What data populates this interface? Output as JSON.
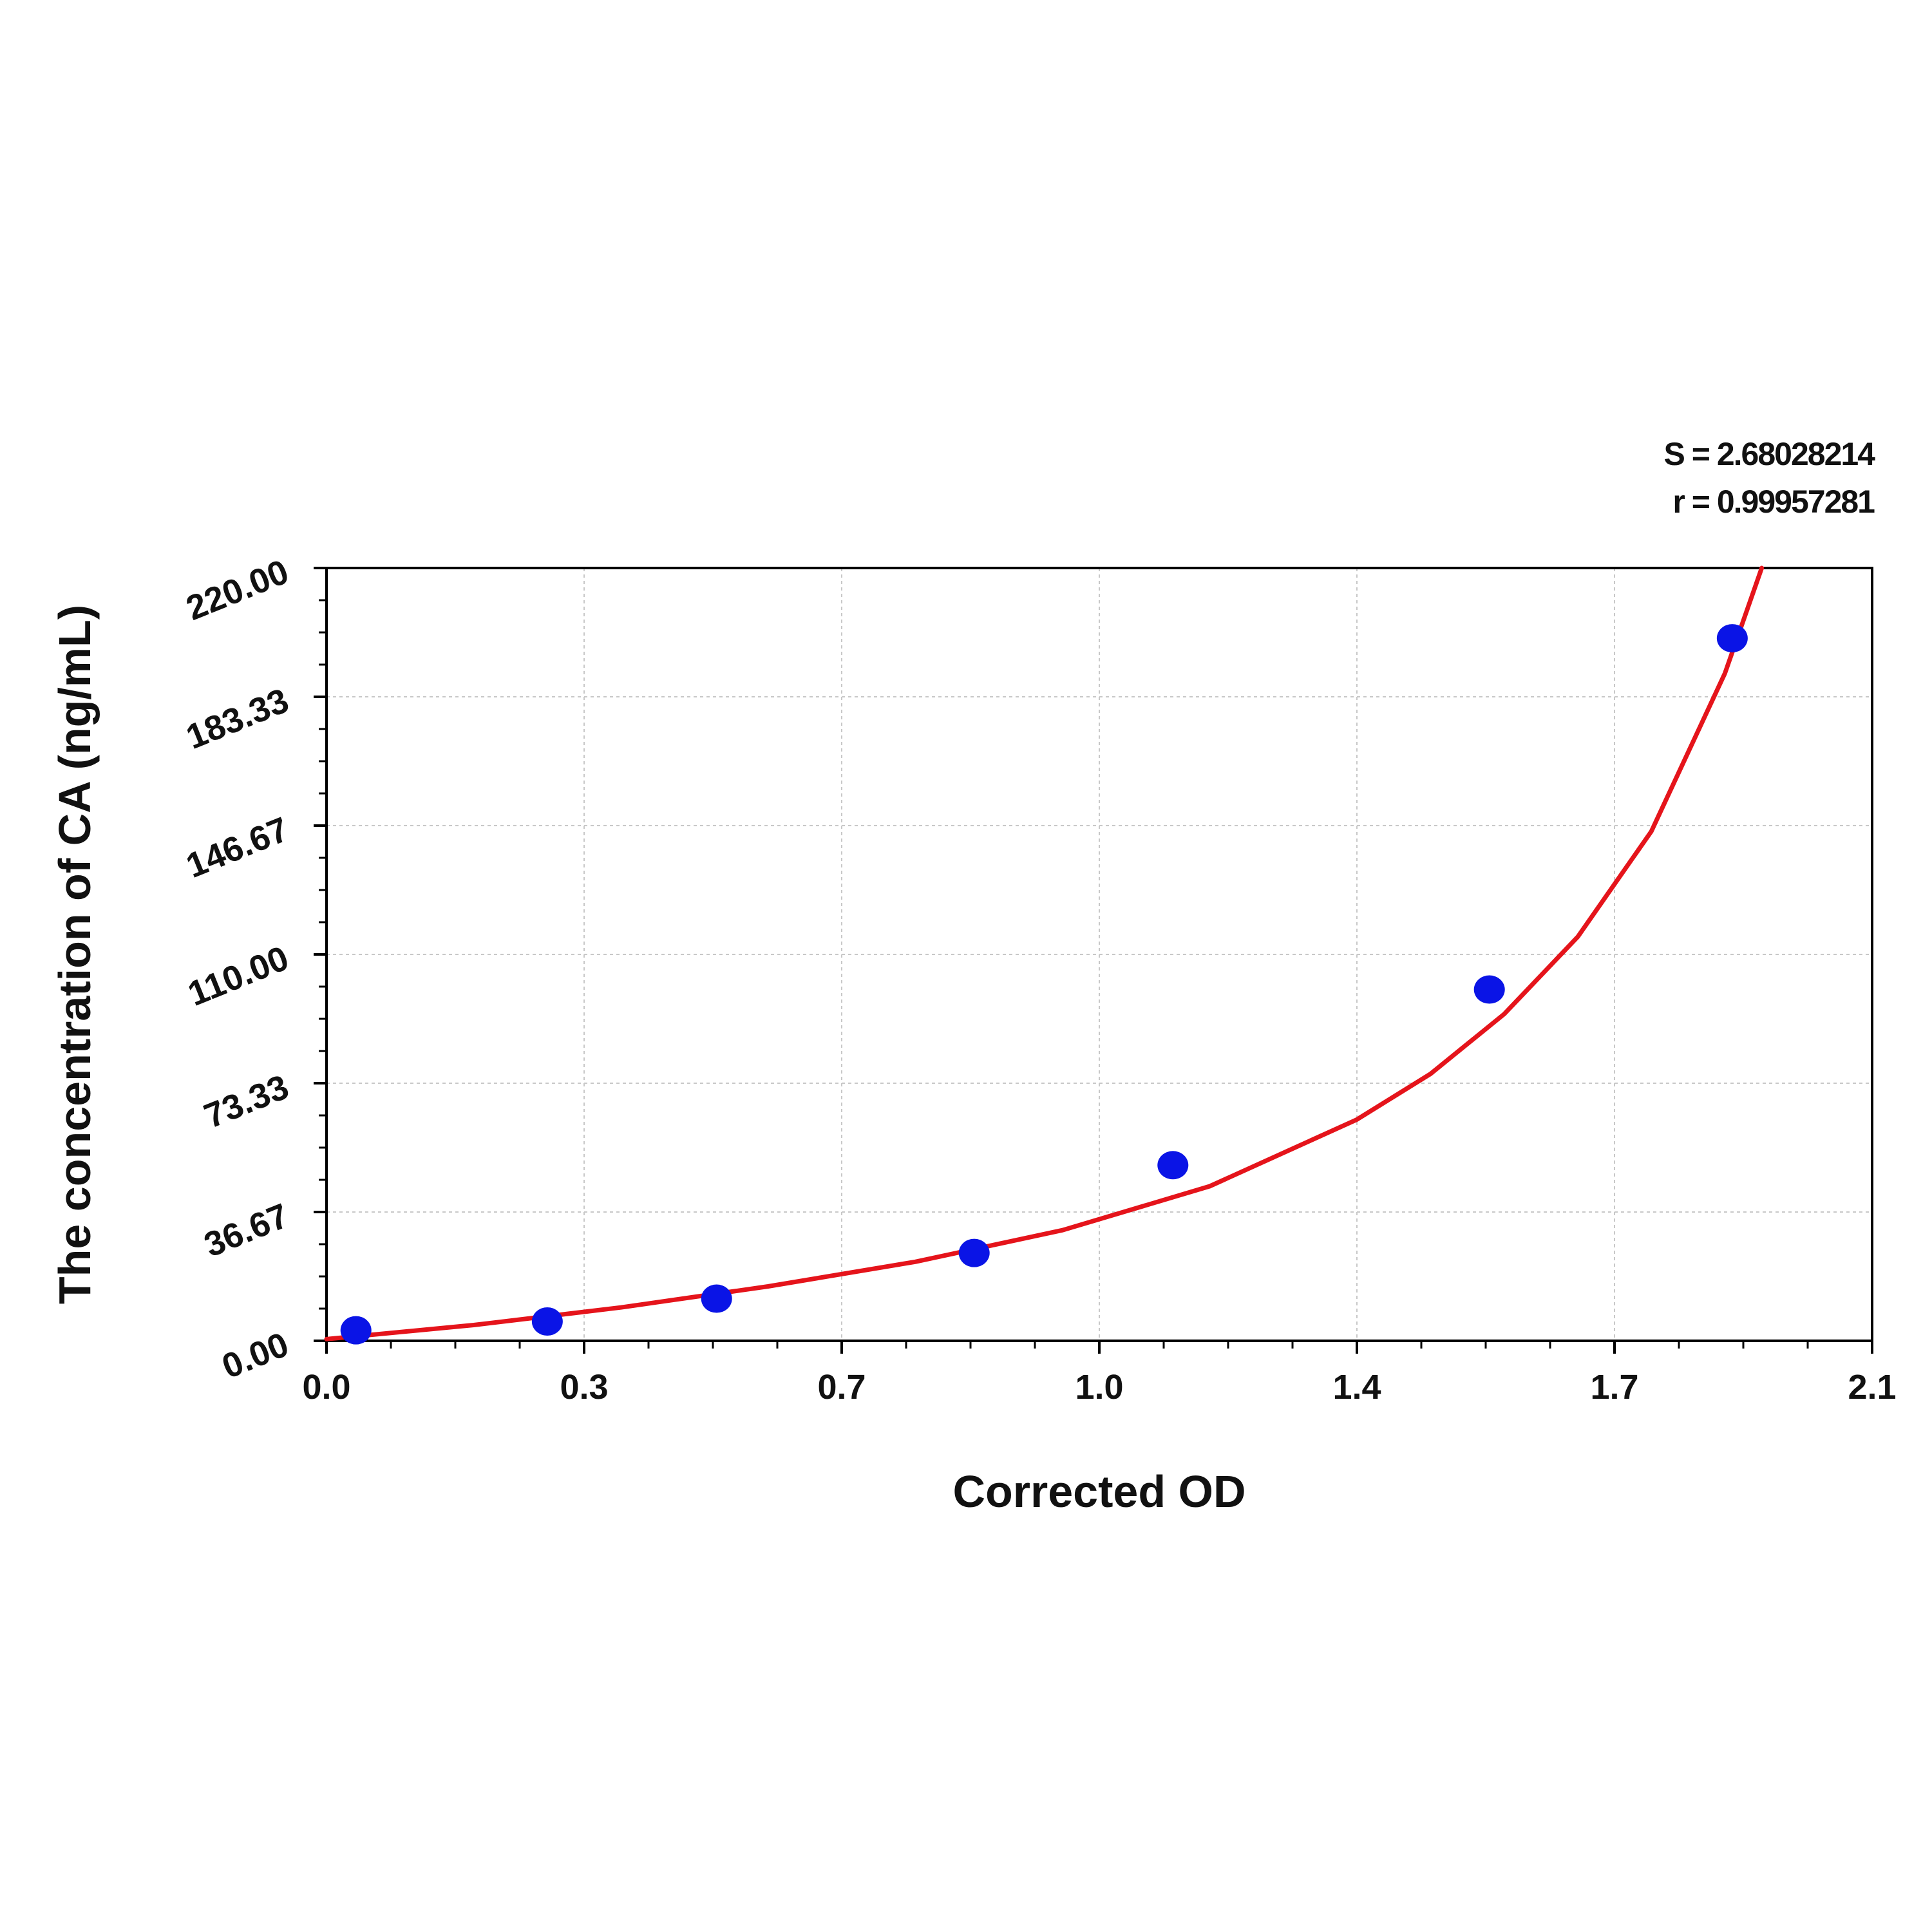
{
  "stats": {
    "s_label": "S = 2.68028214",
    "r_label": "r = 0.99957281"
  },
  "chart_data": {
    "type": "scatter",
    "title": "",
    "xlabel": "Corrected OD",
    "ylabel": "The concentration of CA (ng/mL)",
    "xlim": [
      0.0,
      2.1
    ],
    "ylim": [
      0.0,
      220.0
    ],
    "x_ticks": [
      "0.0",
      "0.3",
      "0.7",
      "1.0",
      "1.4",
      "1.7",
      "2.1"
    ],
    "y_ticks": [
      "0.00",
      "36.67",
      "73.33",
      "110.00",
      "146.67",
      "183.33",
      "220.00"
    ],
    "grid": true,
    "points": [
      {
        "x": 0.04,
        "y": 3.0
      },
      {
        "x": 0.3,
        "y": 5.5
      },
      {
        "x": 0.53,
        "y": 12.0
      },
      {
        "x": 0.88,
        "y": 25.0
      },
      {
        "x": 1.15,
        "y": 50.0
      },
      {
        "x": 1.58,
        "y": 100.0
      },
      {
        "x": 1.91,
        "y": 200.0
      }
    ],
    "fit_curve": {
      "x": [
        0.0,
        0.2,
        0.4,
        0.6,
        0.8,
        1.0,
        1.2,
        1.4,
        1.5,
        1.6,
        1.7,
        1.8,
        1.9,
        1.95
      ],
      "y": [
        0.5,
        4.5,
        9.5,
        15.5,
        22.5,
        31.5,
        44.0,
        63.0,
        76.0,
        93.0,
        115.0,
        145.0,
        190.0,
        220.0
      ]
    },
    "colors": {
      "points": "#0a14e6",
      "curve": "#e5141b",
      "grid": "#c8c8c8",
      "axis": "#000000"
    }
  }
}
